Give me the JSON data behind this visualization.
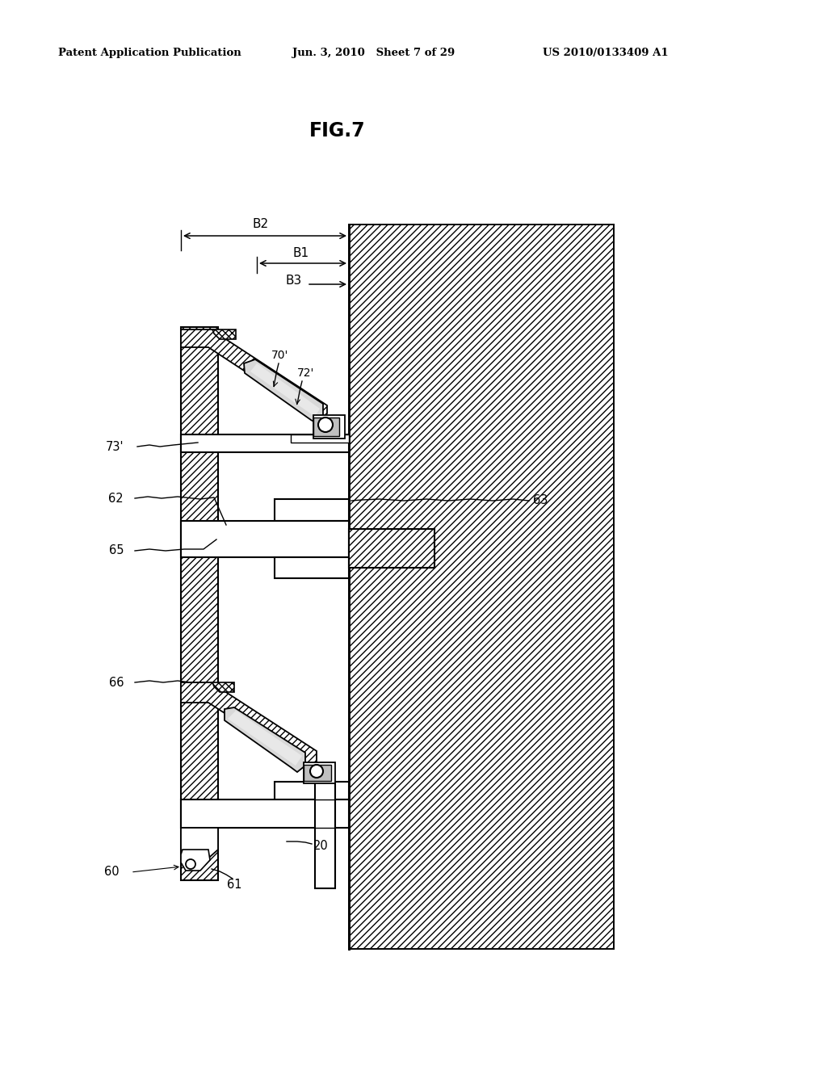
{
  "header_left": "Patent Application Publication",
  "header_center": "Jun. 3, 2010   Sheet 7 of 29",
  "header_right": "US 2010/0133409 A1",
  "fig_title": "FIG.7",
  "bg_color": "#ffffff",
  "fig_width": 10.24,
  "fig_height": 13.2,
  "wall_hatch_color": "#555555",
  "wall_hatch_lw": 0.5,
  "panel_hatch_lw": 0.6
}
